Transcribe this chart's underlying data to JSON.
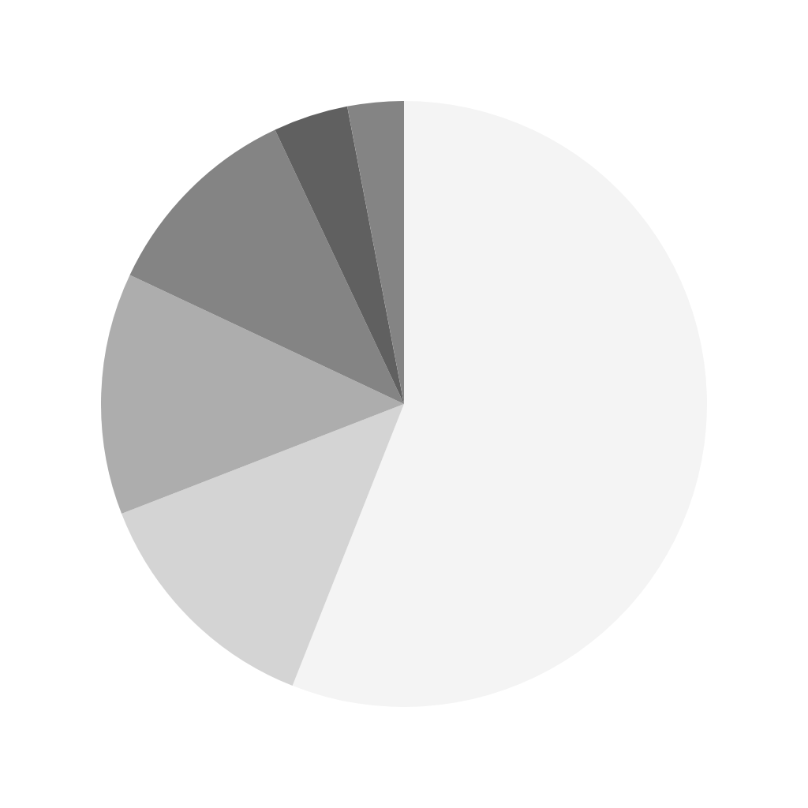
{
  "chart_data": {
    "type": "pie",
    "categories": [
      null,
      null,
      null,
      null,
      null,
      null
    ],
    "values": [
      56,
      13.1,
      12.9,
      11,
      4,
      3
    ],
    "colors": [
      "#f4f4f4",
      "#d4d4d4",
      "#adadad",
      "#848484",
      "#606060",
      "#848484"
    ],
    "legend": false
  }
}
